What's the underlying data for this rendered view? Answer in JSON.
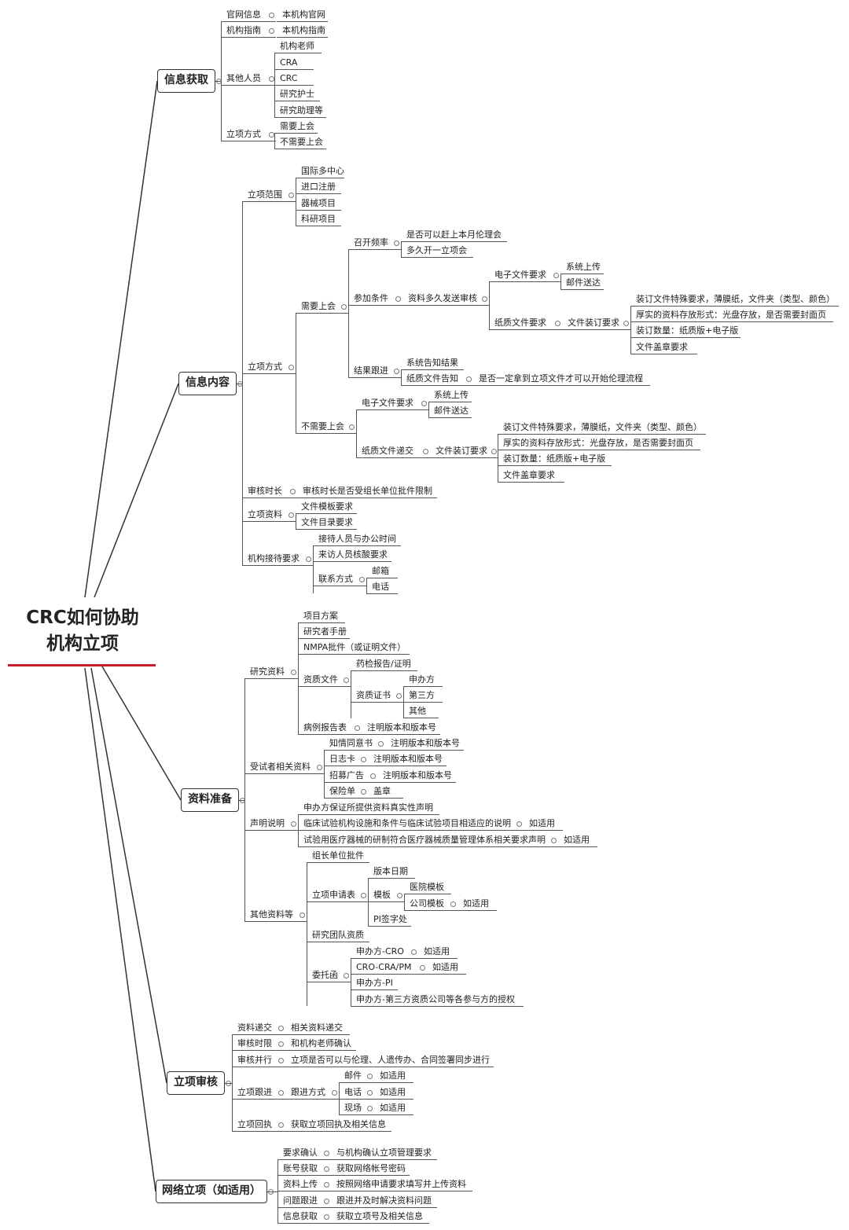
{
  "root": {
    "line1": "CRC如何协助",
    "line2": "机构立项",
    "accent_color": "#c41e2a"
  },
  "branches": [
    {
      "label": "信息获取",
      "nodes": [
        "官网信息",
        "本机构官网",
        "机构指南",
        "本机构指南",
        "其他人员",
        "机构老师",
        "CRA",
        "CRC",
        "研究护士",
        "研究助理等",
        "立项方式",
        "需要上会",
        "不需要上会"
      ]
    },
    {
      "label": "信息内容",
      "nodes": [
        "立项范围",
        "国际多中心",
        "进口注册",
        "器械项目",
        "科研项目",
        "立项方式",
        "需要上会",
        "召开频率",
        "是否可以赶上本月伦理会",
        "多久开一立项会",
        "参加条件",
        "资料多久发送审核",
        "电子文件要求",
        "系统上传",
        "邮件送达",
        "纸质文件要求",
        "文件装订要求",
        "装订文件特殊要求，薄膜纸，文件夹（类型、颜色）",
        "厚实的资料存放形式：光盘存放，是否需要封面页",
        "装订数量：纸质版+电子版",
        "文件盖章要求",
        "结果跟进",
        "系统告知结果",
        "纸质文件告知",
        "是否一定拿到立项文件才可以开始伦理流程",
        "不需要上会",
        "电子文件要求",
        "系统上传",
        "邮件送达",
        "纸质文件递交",
        "文件装订要求",
        "装订文件特殊要求，薄膜纸，文件夹（类型、颜色）",
        "厚实的资料存放形式：光盘存放，是否需要封面页",
        "装订数量：纸质版+电子版",
        "文件盖章要求",
        "审核时长",
        "审核时长是否受组长单位批件限制",
        "立项资料",
        "文件模板要求",
        "文件目录要求",
        "机构接待要求",
        "接待人员与办公时间",
        "来访人员核酸要求",
        "联系方式",
        "邮箱",
        "电话"
      ]
    },
    {
      "label": "资料准备",
      "nodes": [
        "研究资料",
        "项目方案",
        "研究者手册",
        "NMPA批件（或证明文件）",
        "资质文件",
        "药检报告/证明",
        "资质证书",
        "申办方",
        "第三方",
        "其他",
        "病例报告表",
        "注明版本和版本号",
        "受试者相关资料",
        "知情同意书",
        "注明版本和版本号",
        "日志卡",
        "注明版本和版本号",
        "招募广告",
        "注明版本和版本号",
        "保险单",
        "盖章",
        "声明说明",
        "申办方保证所提供资料真实性声明",
        "临床试验机构设施和条件与临床试验项目相适应的说明",
        "如适用",
        "试验用医疗器械的研制符合医疗器械质量管理体系相关要求声明",
        "如适用",
        "其他资料等",
        "组长单位批件",
        "立项申请表",
        "版本日期",
        "模板",
        "医院模板",
        "公司模板",
        "如适用",
        "PI签字处",
        "研究团队资质",
        "委托函",
        "申办方-CRO",
        "如适用",
        "CRO-CRA/PM",
        "如适用",
        "申办方-PI",
        "申办方-第三方资质公司等各参与方的授权"
      ]
    },
    {
      "label": "立项审核",
      "nodes": [
        "资料递交",
        "相关资料递交",
        "审核时限",
        "和机构老师确认",
        "审核并行",
        "立项是否可以与伦理、人遗传办、合同签署同步进行",
        "立项跟进",
        "跟进方式",
        "邮件",
        "如适用",
        "电话",
        "如适用",
        "现场",
        "如适用",
        "立项回执",
        "获取立项回执及相关信息"
      ]
    },
    {
      "label": "网络立项（如适用）",
      "nodes": [
        "要求确认",
        "与机构确认立项管理要求",
        "账号获取",
        "获取网络帐号密码",
        "资料上传",
        "按照网络申请要求填写并上传资料",
        "问题跟进",
        "跟进并及时解决资料问题",
        "信息获取",
        "获取立项号及相关信息"
      ]
    }
  ]
}
